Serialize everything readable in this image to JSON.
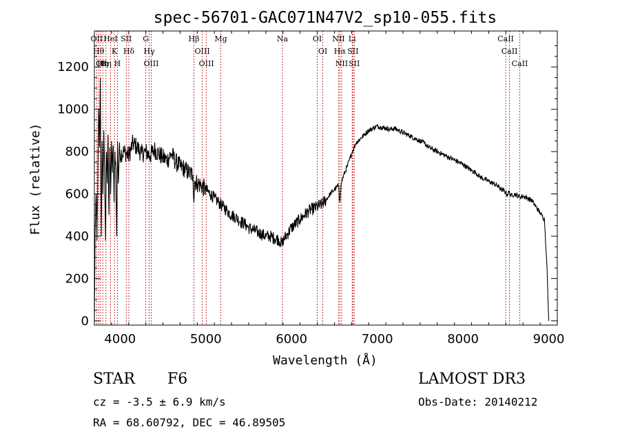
{
  "chart_data": {
    "type": "line",
    "title": "spec-56701-GAC071N47V2_sp10-055.fits",
    "xlabel": "Wavelength (Å)",
    "ylabel": "Flux (relative)",
    "xlim": [
      3700,
      9100
    ],
    "ylim": [
      -20,
      1370
    ],
    "x_ticks": [
      4000,
      5000,
      6000,
      7000,
      8000,
      9000
    ],
    "y_ticks": [
      0,
      200,
      400,
      600,
      800,
      1000,
      1200
    ],
    "series": [
      {
        "name": "flux",
        "x": [
          3700,
          3710,
          3720,
          3730,
          3740,
          3750,
          3760,
          3770,
          3780,
          3790,
          3800,
          3810,
          3820,
          3830,
          3840,
          3850,
          3860,
          3870,
          3880,
          3890,
          3900,
          3910,
          3920,
          3930,
          3940,
          3950,
          3960,
          3970,
          3980,
          3990,
          4000,
          4050,
          4100,
          4150,
          4200,
          4250,
          4300,
          4350,
          4400,
          4450,
          4500,
          4550,
          4600,
          4650,
          4700,
          4750,
          4800,
          4850,
          4861,
          4870,
          4900,
          4950,
          5000,
          5050,
          5100,
          5150,
          5200,
          5250,
          5300,
          5350,
          5400,
          5450,
          5500,
          5550,
          5600,
          5650,
          5700,
          5750,
          5800,
          5850,
          5893,
          5900,
          5950,
          6000,
          6050,
          6100,
          6150,
          6200,
          6250,
          6300,
          6350,
          6400,
          6450,
          6500,
          6550,
          6563,
          6580,
          6600,
          6650,
          6700,
          6750,
          6800,
          6850,
          6900,
          6950,
          7000,
          7050,
          7100,
          7150,
          7200,
          7250,
          7300,
          7350,
          7400,
          7450,
          7500,
          7550,
          7600,
          7650,
          7700,
          7750,
          7800,
          7850,
          7900,
          7950,
          8000,
          8050,
          8100,
          8150,
          8200,
          8250,
          8300,
          8350,
          8400,
          8450,
          8498,
          8510,
          8542,
          8560,
          8600,
          8662,
          8700,
          8750,
          8800,
          8850,
          8900,
          8950,
          8980,
          8990,
          9000
        ],
        "values": [
          0,
          450,
          600,
          380,
          700,
          1000,
          820,
          1150,
          400,
          850,
          600,
          900,
          700,
          380,
          800,
          650,
          880,
          500,
          820,
          600,
          850,
          700,
          830,
          560,
          800,
          720,
          400,
          850,
          650,
          810,
          790,
          800,
          780,
          840,
          820,
          790,
          800,
          780,
          810,
          790,
          770,
          760,
          790,
          750,
          730,
          720,
          700,
          690,
          560,
          660,
          650,
          640,
          620,
          600,
          580,
          560,
          540,
          520,
          500,
          490,
          470,
          460,
          440,
          430,
          420,
          410,
          400,
          400,
          390,
          385,
          360,
          380,
          410,
          440,
          460,
          480,
          500,
          520,
          530,
          540,
          550,
          570,
          600,
          620,
          640,
          560,
          650,
          680,
          730,
          790,
          840,
          860,
          880,
          900,
          910,
          920,
          915,
          910,
          905,
          910,
          900,
          890,
          880,
          870,
          860,
          850,
          840,
          820,
          810,
          800,
          790,
          780,
          770,
          760,
          750,
          740,
          725,
          710,
          700,
          680,
          670,
          660,
          650,
          640,
          620,
          610,
          595,
          610,
          590,
          600,
          585,
          590,
          580,
          570,
          540,
          510,
          480,
          250,
          120,
          0
        ]
      }
    ],
    "lines": [
      {
        "wavelength": 3727,
        "label": "OII"
      },
      {
        "wavelength": 3750,
        "label": "Hθ"
      },
      {
        "wavelength": 3771,
        "label": "OI"
      },
      {
        "wavelength": 3798,
        "label": "Hη"
      },
      {
        "wavelength": 3835,
        "label": "Hη"
      },
      {
        "wavelength": 3889,
        "label": "HeI"
      },
      {
        "wavelength": 3934,
        "label": "K"
      },
      {
        "wavelength": 3969,
        "label": "H"
      },
      {
        "wavelength": 4072,
        "label": "SII"
      },
      {
        "wavelength": 4102,
        "label": "Hδ"
      },
      {
        "wavelength": 4300,
        "label": "G"
      },
      {
        "wavelength": 4340,
        "label": "Hγ"
      },
      {
        "wavelength": 4363,
        "label": "OIII"
      },
      {
        "wavelength": 4861,
        "label": "Hβ"
      },
      {
        "wavelength": 4959,
        "label": "OIII"
      },
      {
        "wavelength": 5007,
        "label": "OIII"
      },
      {
        "wavelength": 5175,
        "label": "Mg"
      },
      {
        "wavelength": 5893,
        "label": "Na"
      },
      {
        "wavelength": 6300,
        "label": "OI"
      },
      {
        "wavelength": 6364,
        "label": "OI"
      },
      {
        "wavelength": 6548,
        "label": "NII"
      },
      {
        "wavelength": 6563,
        "label": "Hα"
      },
      {
        "wavelength": 6584,
        "label": "NII"
      },
      {
        "wavelength": 6707,
        "label": "Li"
      },
      {
        "wavelength": 6716,
        "label": "SII"
      },
      {
        "wavelength": 6731,
        "label": "SII"
      },
      {
        "wavelength": 8498,
        "label": "CaII"
      },
      {
        "wavelength": 8542,
        "label": "CaII"
      },
      {
        "wavelength": 8662,
        "label": "CaII"
      }
    ]
  },
  "info": {
    "class": "STAR",
    "subclass": "F6",
    "survey": "LAMOST DR3",
    "cz": "cz = -3.5 ± 6.9 km/s",
    "obs_date": "Obs-Date: 20140212",
    "radec": "RA =  68.60792, DEC =  46.89505"
  }
}
